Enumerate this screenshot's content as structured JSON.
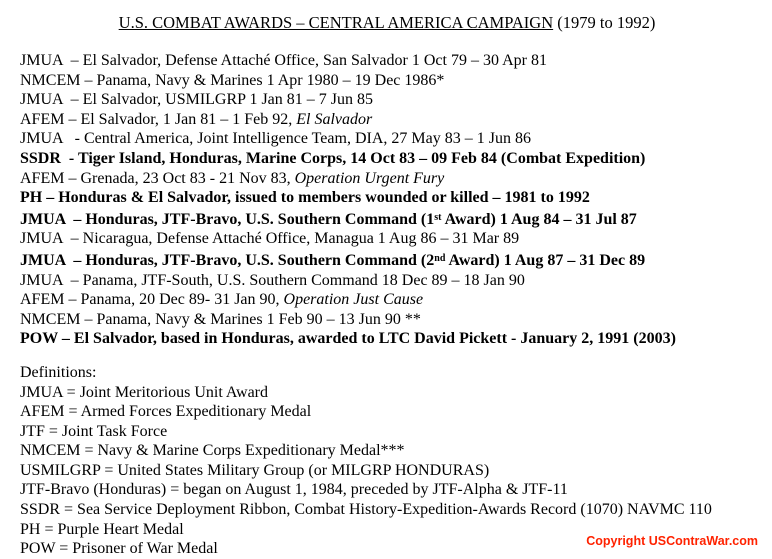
{
  "page": {
    "background_color": "#ffffff",
    "text_color": "#000000"
  },
  "title": {
    "underlined": "U.S. COMBAT AWARDS – CENTRAL AMERICA CAMPAIGN",
    "suffix": " (1979 to 1992)"
  },
  "awards": [
    {
      "segments": [
        {
          "text": "JMUA  – El Salvador, Defense Attaché Office, San Salvador 1 Oct 79 – 30 Apr 81",
          "style": "normal"
        }
      ]
    },
    {
      "segments": [
        {
          "text": "NMCEM – Panama, Navy & Marines 1 Apr 1980 – 19 Dec 1986*",
          "style": "normal"
        }
      ]
    },
    {
      "segments": [
        {
          "text": "JMUA  – El Salvador, USMILGRP 1 Jan 81 – 7 Jun 85",
          "style": "normal"
        }
      ]
    },
    {
      "segments": [
        {
          "text": "AFEM – El Salvador, 1 Jan 81 – 1 Feb 92, ",
          "style": "normal"
        },
        {
          "text": "El Salvador",
          "style": "italic"
        }
      ]
    },
    {
      "segments": [
        {
          "text": "JMUA   - Central America, Joint Intelligence Team, DIA, 27 May 83 – 1 Jun 86",
          "style": "normal"
        }
      ]
    },
    {
      "segments": [
        {
          "text": "SSDR  - Tiger Island, Honduras, Marine Corps, 14 Oct 83 – 09 Feb 84 (Combat Expedition)",
          "style": "bold"
        }
      ]
    },
    {
      "segments": [
        {
          "text": "AFEM – Grenada, 23 Oct 83 - 21 Nov 83, ",
          "style": "normal"
        },
        {
          "text": "Operation Urgent Fury",
          "style": "italic"
        }
      ]
    },
    {
      "segments": [
        {
          "text": "PH – Honduras & El Salvador, issued to members wounded or killed – 1981 to 1992",
          "style": "bold"
        }
      ]
    },
    {
      "segments": [
        {
          "text": "JMUA  – Honduras, JTF-Bravo, U.S. Southern Command (1",
          "style": "bold"
        },
        {
          "text": "st",
          "style": "bold-sup"
        },
        {
          "text": " Award) 1 Aug 84 – 31 Jul 87",
          "style": "bold"
        }
      ]
    },
    {
      "segments": [
        {
          "text": "JMUA  – Nicaragua, Defense Attaché Office, Managua 1 Aug 86 – 31 Mar 89",
          "style": "normal"
        }
      ]
    },
    {
      "segments": [
        {
          "text": "JMUA  – Honduras, JTF-Bravo, U.S. Southern Command (2",
          "style": "bold"
        },
        {
          "text": "nd",
          "style": "bold-sup"
        },
        {
          "text": " Award) 1 Aug 87 – 31 Dec 89",
          "style": "bold"
        }
      ]
    },
    {
      "segments": [
        {
          "text": "JMUA  – Panama, JTF-South, U.S. Southern Command 18 Dec 89 – 18 Jan 90",
          "style": "normal"
        }
      ]
    },
    {
      "segments": [
        {
          "text": "AFEM – Panama, 20 Dec 89- 31 Jan 90, ",
          "style": "normal"
        },
        {
          "text": "Operation Just Cause",
          "style": "italic"
        }
      ]
    },
    {
      "segments": [
        {
          "text": "NMCEM – Panama, Navy & Marines 1 Feb 90 – 13 Jun 90 **",
          "style": "normal"
        }
      ]
    },
    {
      "segments": [
        {
          "text": "POW – El Salvador, based in Honduras, awarded to LTC David Pickett - January 2, 1991 (2003)",
          "style": "bold"
        }
      ]
    }
  ],
  "definitions": {
    "heading": "Definitions:",
    "items": [
      "JMUA = Joint Meritorious Unit Award",
      "AFEM = Armed Forces Expeditionary Medal",
      "JTF = Joint Task Force",
      "NMCEM = Navy & Marine Corps Expeditionary Medal***",
      "USMILGRP = United States Military Group (or MILGRP HONDURAS)",
      "JTF-Bravo (Honduras) = began on August 1, 1984, preceded by JTF-Alpha & JTF-11",
      "SSDR = Sea Service Deployment Ribbon, Combat History-Expedition-Awards Record (1070) NAVMC 110",
      "PH = Purple Heart Medal",
      "POW = Prisoner of War Medal"
    ]
  },
  "footer": {
    "copyright": "Copyright USContraWar.com",
    "copyright_color": "#ff2200"
  }
}
